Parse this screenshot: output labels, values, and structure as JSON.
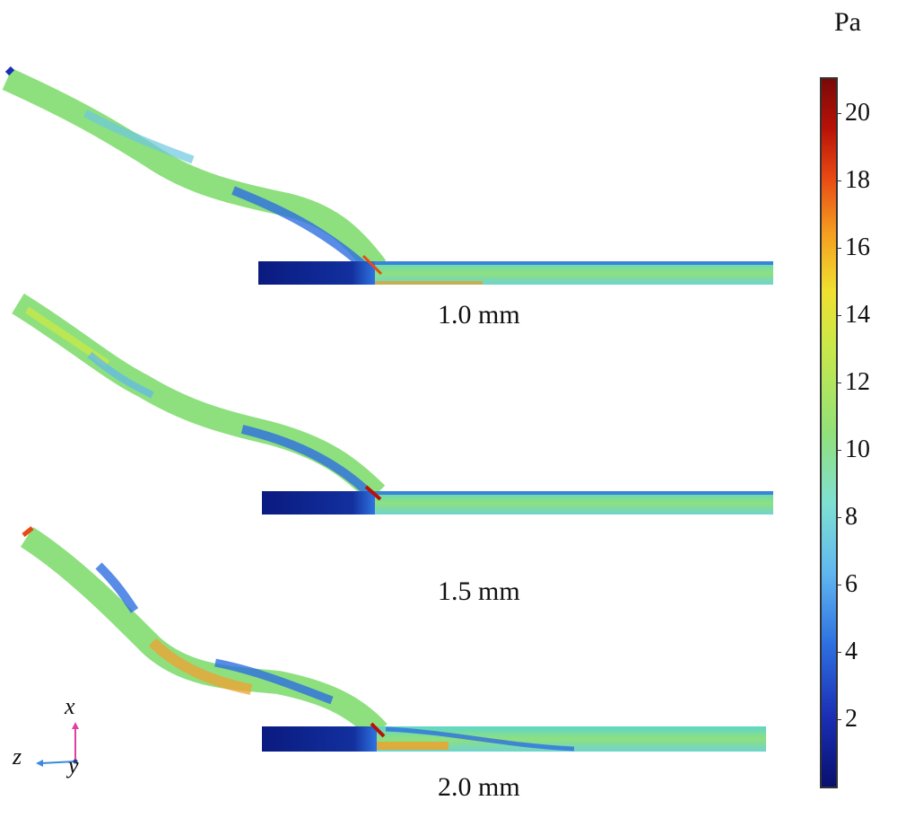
{
  "colorbar": {
    "unit": "Pa",
    "min": 0,
    "max": 21,
    "ticks": [
      "20",
      "18",
      "16",
      "14",
      "12",
      "10",
      "8",
      "6",
      "4",
      "2"
    ],
    "tick_values": [
      20,
      18,
      16,
      14,
      12,
      10,
      8,
      6,
      4,
      2
    ],
    "colors": [
      "#08106e",
      "#1a2fb5",
      "#2e6fe0",
      "#5fb6f0",
      "#7fe0d2",
      "#92e07a",
      "#c8e84a",
      "#f0e030",
      "#f5a020",
      "#e84a14",
      "#b81208",
      "#7a0a08"
    ]
  },
  "panels": [
    {
      "label": "1.0 mm",
      "high_stress_band": false
    },
    {
      "label": "1.5 mm",
      "high_stress_band": false
    },
    {
      "label": "2.0 mm",
      "high_stress_band": true
    }
  ],
  "axes_triad": {
    "x": "x",
    "y": "y",
    "z": "z"
  }
}
